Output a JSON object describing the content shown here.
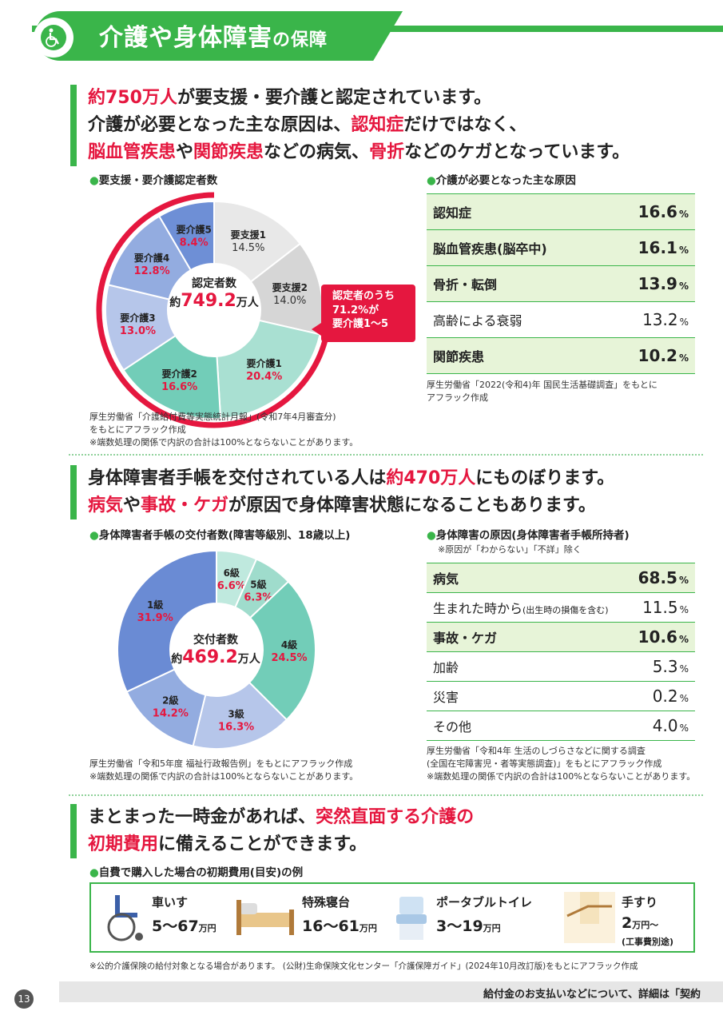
{
  "header": {
    "title_big": "介護や身体障害",
    "title_small": "の保障"
  },
  "sec1": {
    "lead": [
      [
        [
          "約750万人",
          "red"
        ],
        [
          "が要支援・要介護と認定されています。",
          ""
        ]
      ],
      [
        [
          "介護が必要となった主な原因は、",
          ""
        ],
        [
          "認知症",
          "red"
        ],
        [
          "だけではなく、",
          ""
        ]
      ],
      [
        [
          "脳血管疾患",
          "red"
        ],
        [
          "や",
          ""
        ],
        [
          "関節疾患",
          "red"
        ],
        [
          "などの病気、",
          ""
        ],
        [
          "骨折",
          "red"
        ],
        [
          "などのケガとなっています。",
          ""
        ]
      ]
    ],
    "chart_title": "要支援・要介護認定者数",
    "center_label": "認定者数",
    "center_prefix": "約",
    "center_value": "749.2",
    "center_unit": "万人",
    "callout": [
      "認定者のうち",
      "71.2%が",
      "要介護1～5"
    ],
    "source": [
      "厚生労働省「介護給付費等実態統計月報」(令和7年4月審査分)",
      "をもとにアフラック作成",
      "※端数処理の関係で内訳の合計は100%とならないことがあります。"
    ],
    "table_title": "介護が必要となった主な原因",
    "table": [
      {
        "label": "認知症",
        "value": "16.6",
        "hl": true
      },
      {
        "label": "脳血管疾患(脳卒中)",
        "value": "16.1",
        "hl": true
      },
      {
        "label": "骨折・転倒",
        "value": "13.9",
        "hl": true
      },
      {
        "label": "高齢による衰弱",
        "value": "13.2",
        "hl": false
      },
      {
        "label": "関節疾患",
        "value": "10.2",
        "hl": true
      }
    ],
    "table_source": [
      "厚生労働省「2022(令和4)年 国民生活基礎調査」をもとに",
      "アフラック作成"
    ]
  },
  "sec2": {
    "lead": [
      [
        [
          "身体障害者手帳を交付されている人は",
          ""
        ],
        [
          "約470万人",
          "red"
        ],
        [
          "にものぼります。",
          ""
        ]
      ],
      [
        [
          "病気",
          "red"
        ],
        [
          "や",
          ""
        ],
        [
          "事故・ケガ",
          "red"
        ],
        [
          "が原因で身体障害状態になることもあります。",
          ""
        ]
      ]
    ],
    "chart_title": "身体障害者手帳の交付者数(障害等級別、18歳以上)",
    "center_label": "交付者数",
    "center_prefix": "約",
    "center_value": "469.2",
    "center_unit": "万人",
    "source": [
      "厚生労働省「令和5年度 福祉行政報告例」をもとにアフラック作成",
      "※端数処理の関係で内訳の合計は100%とならないことがあります。"
    ],
    "table_title": "身体障害の原因(身体障害者手帳所持者)",
    "table_note": "※原因が「わからない」「不詳」除く",
    "table": [
      {
        "label": "病気",
        "sub": "",
        "value": "68.5",
        "hl": true
      },
      {
        "label": "生まれた時から",
        "sub": "(出生時の損傷を含む)",
        "value": "11.5",
        "hl": false
      },
      {
        "label": "事故・ケガ",
        "sub": "",
        "value": "10.6",
        "hl": true
      },
      {
        "label": "加齢",
        "sub": "",
        "value": "5.3",
        "hl": false
      },
      {
        "label": "災害",
        "sub": "",
        "value": "0.2",
        "hl": false
      },
      {
        "label": "その他",
        "sub": "",
        "value": "4.0",
        "hl": false
      }
    ],
    "table_source": [
      "厚生労働省「令和4年 生活のしづらさなどに関する調査",
      "(全国在宅障害児・者等実態調査)」をもとにアフラック作成",
      "※端数処理の関係で内訳の合計は100%とならないことがあります。"
    ]
  },
  "sec3": {
    "lead": [
      [
        [
          "まとまった一時金があれば、",
          ""
        ],
        [
          "突然直面する介護の",
          "red"
        ]
      ],
      [
        [
          "初期費用",
          "red"
        ],
        [
          "に備えることができます。",
          ""
        ]
      ]
    ],
    "sub": "自費で購入した場合の初期費用(目安)の例",
    "items": [
      {
        "name": "車いす",
        "price": "5～67",
        "unit": "万円",
        "extra": ""
      },
      {
        "name": "特殊寝台",
        "price": "16～61",
        "unit": "万円",
        "extra": ""
      },
      {
        "name": "ポータブルトイレ",
        "price": "3～19",
        "unit": "万円",
        "extra": ""
      },
      {
        "name": "手すり",
        "price": "2",
        "unit": "万円～",
        "extra": "(工事費別途)"
      }
    ],
    "note": "※公的介護保険の給付対象となる場合があります。 (公財)生命保険文化センター「介護保障ガイド」(2024年10月改訂版)をもとにアフラック作成"
  },
  "footer": {
    "page": "13",
    "text": "給付金のお支払いなどについて、詳細は「契約"
  },
  "percent_sign": "%",
  "chart_data": [
    {
      "type": "pie",
      "title": "要支援・要介護認定者数",
      "categories": [
        "要支援1",
        "要支援2",
        "要介護1",
        "要介護2",
        "要介護3",
        "要介護4",
        "要介護5"
      ],
      "values": [
        14.5,
        14.0,
        20.4,
        16.6,
        13.0,
        12.8,
        8.4
      ],
      "colors": [
        "#e8e8e8",
        "#d6d6d6",
        "#a9e0d2",
        "#72cdb8",
        "#b6c6ea",
        "#93ace0",
        "#6e8fd6"
      ],
      "label_red": [
        false,
        false,
        true,
        true,
        true,
        true,
        true
      ]
    },
    {
      "type": "pie",
      "title": "身体障害者手帳の交付者数(障害等級別、18歳以上)",
      "categories": [
        "6級",
        "5級",
        "4級",
        "3級",
        "2級",
        "1級"
      ],
      "values": [
        6.6,
        6.3,
        24.5,
        16.3,
        14.2,
        31.9
      ],
      "colors": [
        "#bfe9de",
        "#9fdccc",
        "#72cdb8",
        "#b6c6ea",
        "#93ace0",
        "#6a8bd4"
      ],
      "label_red": [
        true,
        true,
        true,
        true,
        true,
        true
      ]
    }
  ]
}
